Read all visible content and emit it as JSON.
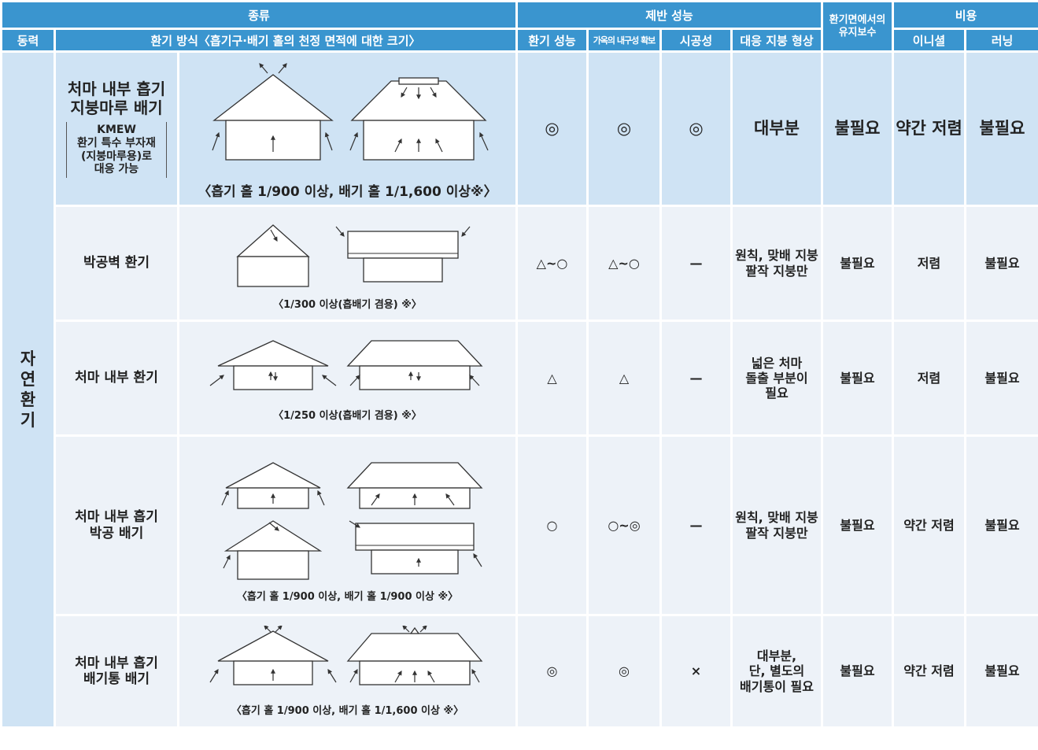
{
  "header": {
    "group_type": "종류",
    "group_performance": "제반 성능",
    "maintenance": "환기면에서의\n유지보수",
    "group_cost": "비용",
    "power": "동력",
    "method": "환기 방식〈흡기구·배기 홀의 천정 면적에 대한 크기〉",
    "ventilation": "환기 성능",
    "durability": "가옥의 내구성 확보",
    "workability": "시공성",
    "roof_shape": "대응 지붕 형상",
    "initial": "이니셜",
    "running": "러닝"
  },
  "power_type": "자연 환기",
  "rows": [
    {
      "name": "처마 내부 흡기\n지붕마루 배기",
      "note": "KMEW\n환기 특수 부자재\n(지붕마루용)로\n대응 가능",
      "caption": "〈흡기 홀 1/900 이상, 배기 홀 1/1,600 이상※〉",
      "values": [
        "◎",
        "◎",
        "◎",
        "대부분",
        "불필요",
        "약간 저렴",
        "불필요"
      ]
    },
    {
      "name": "박공벽 환기",
      "caption": "〈1/300 이상(흡배기 겸용) ※〉",
      "values": [
        "△~○",
        "△~○",
        "—",
        "원칙, 맞배 지붕\n팔작 지붕만",
        "불필요",
        "저렴",
        "불필요"
      ]
    },
    {
      "name": "처마 내부 환기",
      "caption": "〈1/250 이상(흡배기 겸용) ※〉",
      "values": [
        "△",
        "△",
        "—",
        "넓은 처마\n돌출 부분이\n필요",
        "불필요",
        "저렴",
        "불필요"
      ]
    },
    {
      "name": "처마 내부 흡기\n박공 배기",
      "caption": "〈흡기 홀 1/900 이상, 배기 홀 1/900 이상 ※〉",
      "values": [
        "○",
        "○~◎",
        "—",
        "원칙, 맞배 지붕\n팔작 지붕만",
        "불필요",
        "약간 저렴",
        "불필요"
      ]
    },
    {
      "name": "처마 내부 흡기\n배기통 배기",
      "caption": "〈흡기 홀 1/900 이상, 배기 홀 1/1,600 이상 ※〉",
      "values": [
        "◎",
        "◎",
        "×",
        "대부분,\n단, 별도의\n배기통이 필요",
        "불필요",
        "약간 저렴",
        "불필요"
      ]
    }
  ]
}
